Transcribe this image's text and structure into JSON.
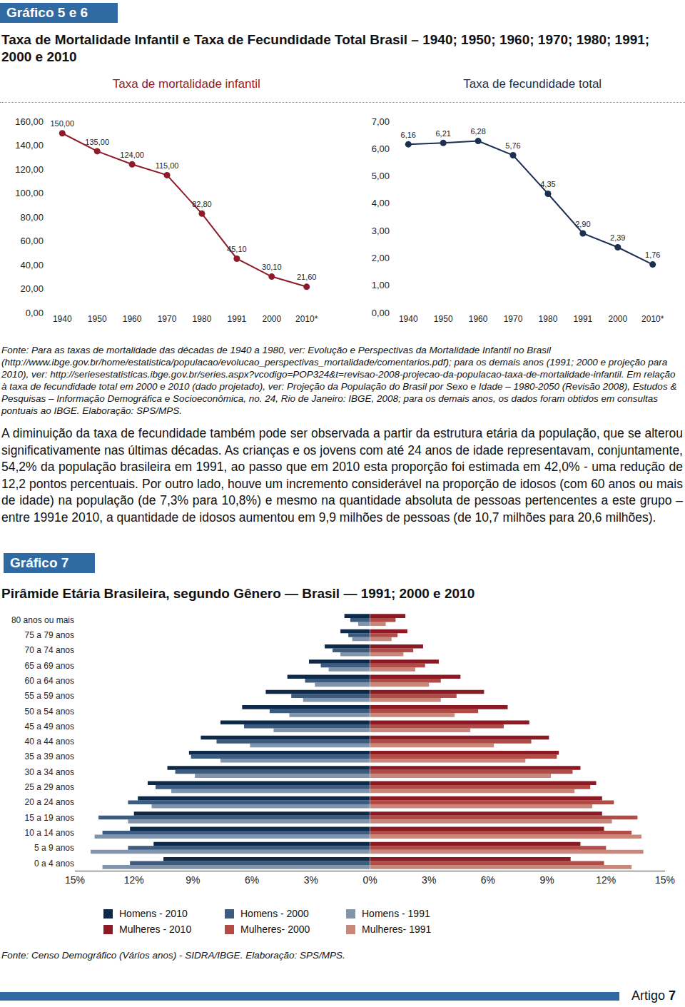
{
  "document": {
    "header": "Gráfico 5 e 6",
    "title": "Taxa de Mortalidade Infantil e Taxa de Fecundidade Total Brasil – 1940; 1950; 1960; 1970; 1980; 1991; 2000 e 2010",
    "source": "Fonte: Para as taxas de mortalidade das décadas de 1940 a 1980, ver: Evolução e Perspectivas da Mortalidade Infantil no Brasil (http://www.ibge.gov.br/home/estatistica/populacao/evolucao_perspectivas_mortalidade/comentarios.pdf); para os demais anos (1991; 2000 e projeção para 2010), ver: http://seriesestatisticas.ibge.gov.br/series.aspx?vcodigo=POP324&t=revisao-2008-projecao-da-populacao-taxa-de-mortalidade-infantil. Em relação à taxa de fecundidade total em 2000 e 2010 (dado projetado), ver: Projeção da População do Brasil por Sexo e Idade – 1980-2050 (Revisão 2008), Estudos & Pesquisas – Informação Demográfica e Socioeconômica, no. 24, Rio de Janeiro: IBGE, 2008; para os demais anos, os dados foram obtidos em consultas pontuais ao IBGE. Elaboração: SPS/MPS.",
    "paragraph": "A diminuição da taxa de fecundidade também pode ser observada a partir da estrutura etária da população, que se alterou significativamente nas últimas décadas. As crianças e os jovens com até 24 anos de idade representavam, conjuntamente, 54,2% da população brasileira em 1991, ao passo que em 2010 esta proporção foi estimada em 42,0% - uma redução de 12,2 pontos percentuais. Por outro lado, houve um incremento considerável na proporção de idosos (com 60 anos ou mais de idade) na população (de 7,3% para 10,8%) e mesmo na quantidade absoluta de pessoas pertencentes a este grupo – entre 1991e 2010, a quantidade de idosos aumentou em 9,9 milhões de pessoas (de 10,7 milhões para 20,6 milhões).",
    "header2": "Gráfico 7",
    "source2": "Fonte: Censo Demográfico (Vários anos) - SIDRA/IBGE. Elaboração: SPS/MPS.",
    "footer": {
      "label": "Artigo",
      "page": "7"
    }
  },
  "chart_data": [
    {
      "type": "line",
      "title": "Taxa de mortalidade infantil",
      "categories": [
        "1940",
        "1950",
        "1960",
        "1970",
        "1980",
        "1991",
        "2000",
        "2010*"
      ],
      "values": [
        150,
        135,
        124,
        115,
        82.8,
        45.1,
        30.1,
        21.6
      ],
      "value_labels": [
        "150,00",
        "135,00",
        "124,00",
        "115,00",
        "82,80",
        "45,10",
        "30,10",
        "21,60"
      ],
      "color": "#8e1b2a",
      "marker": "circle",
      "data_labels": true,
      "ylim": [
        0,
        160
      ],
      "yticks": [
        {
          "value": 0,
          "label": "0,00"
        },
        {
          "value": 20,
          "label": "20,00"
        },
        {
          "value": 40,
          "label": "40,00"
        },
        {
          "value": 60,
          "label": "60,00"
        },
        {
          "value": 80,
          "label": "80,00"
        },
        {
          "value": 100,
          "label": "100,00"
        },
        {
          "value": 120,
          "label": "120,00"
        },
        {
          "value": 140,
          "label": "140,00"
        },
        {
          "value": 160,
          "label": "160,00"
        }
      ],
      "grid": false
    },
    {
      "type": "line",
      "title": "Taxa de fecundidade total",
      "categories": [
        "1940",
        "1950",
        "1960",
        "1970",
        "1980",
        "1991",
        "2000",
        "2010*"
      ],
      "values": [
        6.16,
        6.21,
        6.28,
        5.76,
        4.35,
        2.9,
        2.39,
        1.76
      ],
      "value_labels": [
        "6,16",
        "6,21",
        "6,28",
        "5,76",
        "4,35",
        "2,90",
        "2,39",
        "1,76"
      ],
      "color": "#1b2f50",
      "marker": "circle",
      "data_labels": true,
      "ylim": [
        0,
        7
      ],
      "yticks": [
        {
          "value": 0,
          "label": "0,00"
        },
        {
          "value": 1,
          "label": "1,00"
        },
        {
          "value": 2,
          "label": "2,00"
        },
        {
          "value": 3,
          "label": "3,00"
        },
        {
          "value": 4,
          "label": "4,00"
        },
        {
          "value": 5,
          "label": "5,00"
        },
        {
          "value": 6,
          "label": "6,00"
        },
        {
          "value": 7,
          "label": "7,00"
        }
      ],
      "grid": false
    },
    {
      "type": "bar",
      "orientation": "horizontal",
      "title": "Pirâmide Etária Brasileira, segundo Gênero — Brasil — 1991; 2000 e 2010",
      "categories": [
        "0 a 4 anos",
        "5 a 9 anos",
        "10 a 14 anos",
        "15 a 19 anos",
        "20 a 24 anos",
        "25 a 29 anos",
        "30 a 34 anos",
        "35 a 39 anos",
        "40 a 44 anos",
        "45 a 49 anos",
        "50 a 54 anos",
        "55 a 59 anos",
        "60 a 64 anos",
        "65 a 69 anos",
        "70 a 74 anos",
        "75 a 79 anos",
        "80 anos ou mais"
      ],
      "series": [
        {
          "name": "Homens - 2010",
          "color": "#0e2a4a",
          "axis": "x",
          "values": [
            10.5,
            11.0,
            12.2,
            12.0,
            11.8,
            11.3,
            10.3,
            9.2,
            8.6,
            7.6,
            6.5,
            5.3,
            4.2,
            3.1,
            2.3,
            1.5,
            1.3
          ]
        },
        {
          "name": "Homens - 2000",
          "color": "#3c5b80",
          "axis": "x",
          "values": [
            12.2,
            12.3,
            13.6,
            13.8,
            12.3,
            10.9,
            9.9,
            9.1,
            7.8,
            6.4,
            5.1,
            4.0,
            3.3,
            2.5,
            1.9,
            1.1,
            1.0
          ]
        },
        {
          "name": "Homens - 1991",
          "color": "#8094ac",
          "axis": "x",
          "values": [
            13.6,
            14.2,
            14.0,
            12.3,
            11.1,
            10.1,
            8.9,
            7.6,
            6.1,
            4.9,
            4.1,
            3.4,
            2.8,
            2.1,
            1.5,
            0.9,
            0.6
          ]
        },
        {
          "name": "Mulheres - 2010",
          "color": "#8c1a25",
          "axis": "x2",
          "values": [
            10.2,
            10.7,
            11.9,
            11.8,
            11.8,
            11.5,
            10.7,
            9.6,
            9.1,
            8.1,
            7.0,
            5.8,
            4.6,
            3.5,
            2.7,
            1.9,
            1.8
          ]
        },
        {
          "name": "Mulheres- 2000",
          "color": "#b04b45",
          "axis": "x2",
          "values": [
            11.9,
            12.0,
            13.3,
            13.6,
            12.4,
            11.2,
            10.3,
            9.5,
            8.2,
            6.8,
            5.5,
            4.4,
            3.6,
            2.8,
            2.2,
            1.4,
            1.3
          ]
        },
        {
          "name": "Mulheres- 1991",
          "color": "#c9867b",
          "axis": "x2",
          "values": [
            13.3,
            13.9,
            13.8,
            12.3,
            11.3,
            10.4,
            9.2,
            7.9,
            6.3,
            5.1,
            4.3,
            3.6,
            3.0,
            2.3,
            1.7,
            1.1,
            0.8
          ]
        }
      ],
      "xlim": [
        15,
        0
      ],
      "xticks": [
        {
          "value": 15,
          "label": "15%"
        },
        {
          "value": 12,
          "label": "12%"
        },
        {
          "value": 9,
          "label": "9%"
        },
        {
          "value": 6,
          "label": "6%"
        },
        {
          "value": 3,
          "label": "3%"
        },
        {
          "value": 0,
          "label": "0%"
        }
      ],
      "x2lim": [
        0,
        15
      ],
      "x2ticks": [
        {
          "value": 3,
          "label": "3%"
        },
        {
          "value": 6,
          "label": "6%"
        },
        {
          "value": 9,
          "label": "9%"
        },
        {
          "value": 12,
          "label": "12%"
        },
        {
          "value": 15,
          "label": "15%"
        }
      ],
      "legend": "bottom",
      "grid": false
    }
  ]
}
